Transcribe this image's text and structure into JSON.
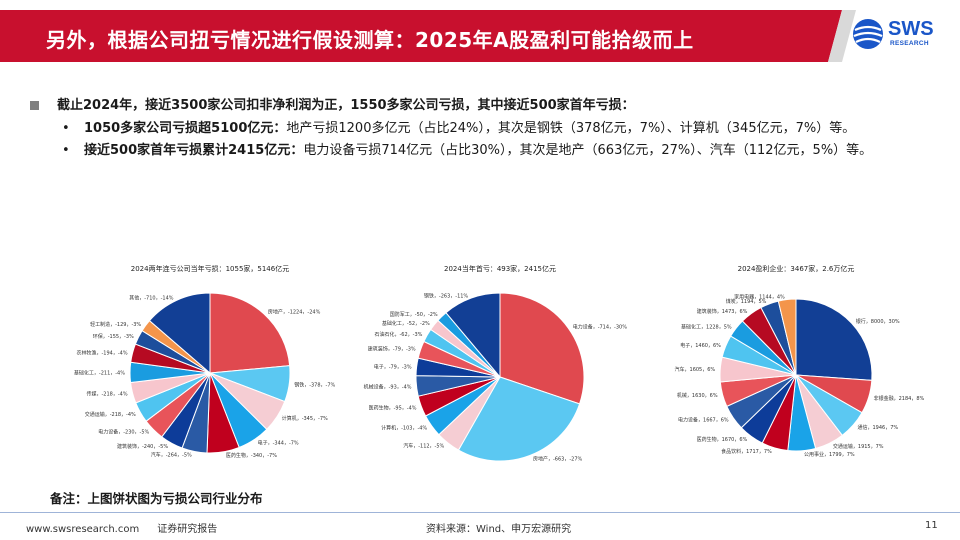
{
  "header": {
    "title": "另外，根据公司扭亏情况进行假设测算：2025年A股盈利可能拾级而上",
    "logo_text": "SWS",
    "logo_sub": "RESEARCH",
    "bar_color": "#c8102e"
  },
  "bullets": {
    "main": "截止2024年，接近3500家公司扣非净利润为正，1550多家公司亏损，其中接近500家首年亏损：",
    "sub1_bold": "1050多家公司亏损超5100亿元：",
    "sub1_text": "地产亏损1200多亿元（占比24%），其次是钢铁（378亿元，7%）、计算机（345亿元，7%）等。",
    "sub2_bold": "接近500家首年亏损累计2415亿元：",
    "sub2_text": "电力设备亏损714亿元（占比30%），其次是地产（663亿元，27%）、汽车（112亿元，5%）等。",
    "dot": "•"
  },
  "chart_data": [
    {
      "type": "pie",
      "title": "2024两年连亏公司当年亏损：1055家，5146亿元",
      "slices": [
        {
          "label": "房地产，-1224，-24%",
          "value": 1224,
          "color": "#e0494f"
        },
        {
          "label": "钢铁，-378，-7%",
          "value": 378,
          "color": "#5bc8f2"
        },
        {
          "label": "计算机，-345，-7%",
          "value": 345,
          "color": "#f5cdd3"
        },
        {
          "label": "电子，-344，-7%",
          "value": 344,
          "color": "#1aa3e8"
        },
        {
          "label": "医药生物，-340，-7%",
          "value": 340,
          "color": "#c0001e"
        },
        {
          "label": "汽车，-264，-5%",
          "value": 264,
          "color": "#2a5aa5"
        },
        {
          "label": "建筑装饰，-240，-5%",
          "value": 240,
          "color": "#0d3c99"
        },
        {
          "label": "电力设备，-230，-5%",
          "value": 230,
          "color": "#e8545a"
        },
        {
          "label": "交通运输，-218，-4%",
          "value": 218,
          "color": "#4fc4f0"
        },
        {
          "label": "传媒，-218，-4%",
          "value": 218,
          "color": "#f7c6cd"
        },
        {
          "label": "基础化工，-211，-4%",
          "value": 211,
          "color": "#1a9ce0"
        },
        {
          "label": "农林牧渔，-194，-4%",
          "value": 194,
          "color": "#b60a22"
        },
        {
          "label": "环保，-155，-3%",
          "value": 155,
          "color": "#1d4e9c"
        },
        {
          "label": "轻工制造，-129，-3%",
          "value": 129,
          "color": "#f4954b"
        },
        {
          "label": "其他，-710，-14%",
          "value": 710,
          "color": "#123f95"
        }
      ]
    },
    {
      "type": "pie",
      "title": "2024当年首亏：493家，2415亿元",
      "slices": [
        {
          "label": "电力设备，-714，-30%",
          "value": 714,
          "color": "#e0494f"
        },
        {
          "label": "房地产，-663，-27%",
          "value": 663,
          "color": "#5bc8f2"
        },
        {
          "label": "汽车，-112，-5%",
          "value": 112,
          "color": "#f5cdd3"
        },
        {
          "label": "计算机，-103，-4%",
          "value": 103,
          "color": "#1aa3e8"
        },
        {
          "label": "医药生物，-95，-4%",
          "value": 95,
          "color": "#c0001e"
        },
        {
          "label": "机械设备，-93，-4%",
          "value": 93,
          "color": "#2a5aa5"
        },
        {
          "label": "电子，-79，-3%",
          "value": 79,
          "color": "#0d3c99"
        },
        {
          "label": "建筑装饰，-79，-3%",
          "value": 79,
          "color": "#e8545a"
        },
        {
          "label": "石油石化，-62，-3%",
          "value": 62,
          "color": "#4fc4f0"
        },
        {
          "label": "基础化工，-52，-2%",
          "value": 52,
          "color": "#f7c6cd"
        },
        {
          "label": "国防军工，-50，-2%",
          "value": 50,
          "color": "#1a9ce0"
        },
        {
          "label": "钢铁，-263，-11%",
          "value": 263,
          "color": "#123f95"
        }
      ]
    },
    {
      "type": "pie",
      "title": "2024盈利企业：3467家，2.6万亿元",
      "slices": [
        {
          "label": "银行，8000，30%",
          "value": 8000,
          "color": "#123f95"
        },
        {
          "label": "非银金融，2184，8%",
          "value": 2184,
          "color": "#e0494f"
        },
        {
          "label": "通信，1946，7%",
          "value": 1946,
          "color": "#5bc8f2"
        },
        {
          "label": "交通运输，1915，7%",
          "value": 1915,
          "color": "#f5cdd3"
        },
        {
          "label": "公用事业，1799，7%",
          "value": 1799,
          "color": "#1aa3e8"
        },
        {
          "label": "食品饮料，1717，7%",
          "value": 1717,
          "color": "#c0001e"
        },
        {
          "label": "医药生物，1670，6%",
          "value": 1670,
          "color": "#0d3c99"
        },
        {
          "label": "电力设备，1667，6%",
          "value": 1667,
          "color": "#2a5aa5"
        },
        {
          "label": "机械，1630，6%",
          "value": 1630,
          "color": "#e8545a"
        },
        {
          "label": "汽车，1605，6%",
          "value": 1605,
          "color": "#f7c6cd"
        },
        {
          "label": "电子，1460，6%",
          "value": 1460,
          "color": "#4fc4f0"
        },
        {
          "label": "基础化工，1228，5%",
          "value": 1228,
          "color": "#1a9ce0"
        },
        {
          "label": "建筑装饰，1473，6%",
          "value": 1473,
          "color": "#b60a22"
        },
        {
          "label": "煤炭，1194，5%",
          "value": 1194,
          "color": "#1d4e9c"
        },
        {
          "label": "家用电器，1144，4%",
          "value": 1144,
          "color": "#f4954b"
        }
      ]
    }
  ],
  "note": "备注：上图饼状图为亏损公司行业分布",
  "footer": {
    "site": "www.swsresearch.com",
    "report": "证券研究报告",
    "source": "资料来源：Wind、申万宏源研究",
    "page": "11"
  }
}
